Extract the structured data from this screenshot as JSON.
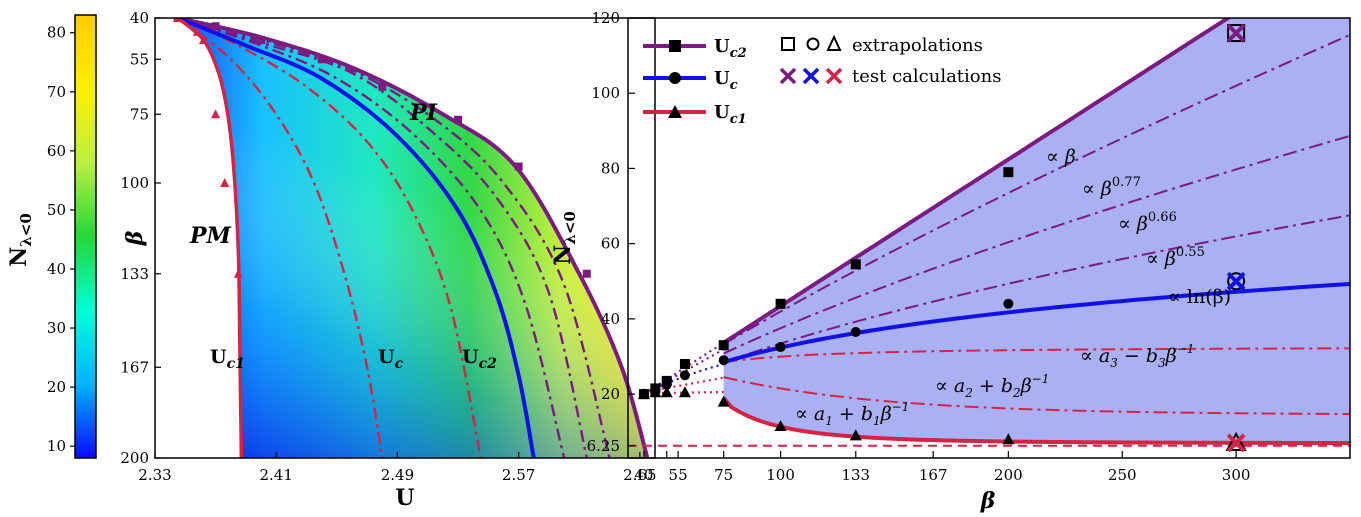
{
  "colorbar": {
    "label": "N",
    "label_sub": "λ<0",
    "ticks": [
      "80",
      "70",
      "60",
      "50",
      "40",
      "30",
      "20",
      "10"
    ],
    "tick_values": [
      80,
      70,
      60,
      50,
      40,
      30,
      20,
      10
    ],
    "range": [
      8,
      83
    ],
    "colors": [
      "#0a0aff",
      "#00b4ff",
      "#00ffd8",
      "#22d838",
      "#bbf040",
      "#fff000",
      "#ffcc00"
    ]
  },
  "chart_data": [
    {
      "type": "heatmap",
      "xlabel": "U",
      "ylabel": "β",
      "xlim": [
        2.33,
        2.66
      ],
      "ylim": [
        40,
        200
      ],
      "x_ticks": [
        "2.33",
        "2.41",
        "2.49",
        "2.57",
        "2.65"
      ],
      "x_tick_values": [
        2.33,
        2.41,
        2.49,
        2.57,
        2.65
      ],
      "y_ticks": [
        "40",
        "55",
        "75",
        "100",
        "133",
        "167",
        "200"
      ],
      "y_tick_values": [
        40,
        55,
        75,
        100,
        133,
        167,
        200
      ],
      "regions": {
        "pm": "PM",
        "pi": "PI"
      },
      "curve_labels": {
        "uc1": "U",
        "uc1_sub": "c1",
        "uc": "U",
        "uc_sub": "c",
        "uc2": "U",
        "uc2_sub": "c2"
      },
      "series": [
        {
          "name": "Uc2",
          "color": "#7b1b82",
          "points": [
            [
              2.345,
              40
            ],
            [
              2.4,
              47
            ],
            [
              2.46,
              58
            ],
            [
              2.52,
              75
            ],
            [
              2.568,
              94
            ],
            [
              2.61,
              133
            ],
            [
              2.638,
              167
            ],
            [
              2.655,
              200
            ]
          ]
        },
        {
          "name": "Uc",
          "color": "#1010e8",
          "points": [
            [
              2.345,
              40
            ],
            [
              2.39,
              50
            ],
            [
              2.44,
              62
            ],
            [
              2.49,
              83
            ],
            [
              2.53,
              110
            ],
            [
              2.555,
              140
            ],
            [
              2.57,
              170
            ],
            [
              2.58,
              200
            ]
          ]
        },
        {
          "name": "Uc1",
          "color": "#d42445",
          "points": [
            [
              2.345,
              40
            ],
            [
              2.362,
              48
            ],
            [
              2.372,
              60
            ],
            [
              2.378,
              75
            ],
            [
              2.382,
              95
            ],
            [
              2.385,
              125
            ],
            [
              2.386,
              160
            ],
            [
              2.387,
              200
            ]
          ]
        }
      ],
      "dashed_curves": [
        {
          "color": "#d42445",
          "points": [
            [
              2.345,
              40
            ],
            [
              2.38,
              55
            ],
            [
              2.41,
              75
            ],
            [
              2.435,
              100
            ],
            [
              2.455,
              133
            ],
            [
              2.47,
              167
            ],
            [
              2.48,
              200
            ]
          ]
        },
        {
          "color": "#d42445",
          "points": [
            [
              2.345,
              40
            ],
            [
              2.385,
              50
            ],
            [
              2.43,
              65
            ],
            [
              2.47,
              85
            ],
            [
              2.5,
              110
            ],
            [
              2.525,
              145
            ],
            [
              2.545,
              200
            ]
          ]
        },
        {
          "color": "#7b1b82",
          "points": [
            [
              2.345,
              40
            ],
            [
              2.4,
              50
            ],
            [
              2.45,
              62
            ],
            [
              2.5,
              82
            ],
            [
              2.545,
              110
            ],
            [
              2.575,
              145
            ],
            [
              2.6,
              200
            ]
          ]
        },
        {
          "color": "#7b1b82",
          "points": [
            [
              2.345,
              40
            ],
            [
              2.4,
              49
            ],
            [
              2.46,
              60
            ],
            [
              2.51,
              80
            ],
            [
              2.555,
              105
            ],
            [
              2.59,
              140
            ],
            [
              2.615,
              200
            ]
          ]
        },
        {
          "color": "#7b1b82",
          "points": [
            [
              2.345,
              40
            ],
            [
              2.4,
              48
            ],
            [
              2.46,
              59
            ],
            [
              2.515,
              77
            ],
            [
              2.56,
              100
            ],
            [
              2.6,
              137
            ],
            [
              2.63,
              200
            ]
          ]
        }
      ],
      "markers": {
        "Uc2": [
          [
            2.345,
            40
          ],
          [
            2.37,
            43
          ],
          [
            2.4,
            48
          ],
          [
            2.44,
            55
          ],
          [
            2.48,
            65
          ],
          [
            2.53,
            77
          ],
          [
            2.57,
            94
          ],
          [
            2.615,
            133
          ]
        ],
        "Uc1": [
          [
            2.345,
            40
          ],
          [
            2.358,
            45
          ],
          [
            2.362,
            48
          ],
          [
            2.37,
            75
          ],
          [
            2.376,
            100
          ],
          [
            2.385,
            133
          ]
        ]
      }
    },
    {
      "type": "line",
      "xlabel": "β",
      "ylabel": "N",
      "ylabel_sub": "λ<0",
      "xlim": [
        33,
        350
      ],
      "ylim": [
        3,
        120
      ],
      "x_ticks": [
        "40",
        "55",
        "75",
        "100",
        "133",
        "167",
        "200",
        "250",
        "300"
      ],
      "x_tick_values": [
        40,
        55,
        75,
        100,
        133,
        167,
        200,
        250,
        300
      ],
      "x_ticks_extra": [
        {
          "label": "50",
          "value": 50
        }
      ],
      "y_ticks": [
        "6.25",
        "20",
        "40",
        "60",
        "80",
        "100",
        "120"
      ],
      "y_tick_values": [
        6.25,
        20,
        40,
        60,
        80,
        100,
        120
      ],
      "hline": 6.25,
      "legend": [
        {
          "label": "U",
          "sub": "c2",
          "marker": "square",
          "color": "#7b1b82"
        },
        {
          "label": "U",
          "sub": "c",
          "marker": "circle",
          "color": "#1010e8"
        },
        {
          "label": "U",
          "sub": "c1",
          "marker": "triangle",
          "color": "#d42445"
        }
      ],
      "legend_extra": [
        {
          "label": "extrapolations",
          "markers": [
            "square",
            "circle",
            "triangle"
          ]
        },
        {
          "label": "test calculations",
          "crosses": [
            "#7b1b82",
            "#1010e8",
            "#d42445"
          ]
        }
      ],
      "series": [
        {
          "name": "Uc2",
          "color": "#7b1b82",
          "marker": "square",
          "points": [
            [
              40,
              20
            ],
            [
              45,
              21.5
            ],
            [
              50,
              23.5
            ],
            [
              58,
              28
            ],
            [
              75,
              33
            ],
            [
              100,
              44
            ],
            [
              133,
              54.5
            ],
            [
              200,
              79
            ]
          ],
          "fit": {
            "form": "linear",
            "slope": 0.39,
            "x0": 40,
            "y0": 20
          }
        },
        {
          "name": "Uc",
          "color": "#1010e8",
          "marker": "circle",
          "points": [
            [
              40,
              20
            ],
            [
              45,
              21
            ],
            [
              50,
              22.5
            ],
            [
              58,
              25
            ],
            [
              75,
              29
            ],
            [
              100,
              32.5
            ],
            [
              133,
              36.5
            ],
            [
              200,
              44
            ]
          ],
          "fit": {
            "form": "log"
          }
        },
        {
          "name": "Uc1",
          "color": "#d42445",
          "marker": "triangle",
          "points": [
            [
              40,
              20
            ],
            [
              45,
              20.5
            ],
            [
              50,
              20.5
            ],
            [
              58,
              20.5
            ],
            [
              75,
              18
            ],
            [
              100,
              11.5
            ],
            [
              133,
              9
            ],
            [
              200,
              8
            ]
          ],
          "fit": {
            "form": "inverse",
            "a": 7.0,
            "b": 1000
          }
        }
      ],
      "dashdot_fits": [
        {
          "label": "∝ β^0.77",
          "color": "#7b1b82",
          "exp": 0.77
        },
        {
          "label": "∝ β^0.66",
          "color": "#7b1b82",
          "exp": 0.66
        },
        {
          "label": "∝ β^0.55",
          "color": "#7b1b82",
          "exp": 0.55
        },
        {
          "label": "∝ a3 − b3β^−1",
          "color": "#d42445",
          "form": "a3"
        },
        {
          "label": "∝ a2 + b2β^−1",
          "color": "#d42445",
          "form": "a2"
        }
      ],
      "extrapolations": [
        {
          "x": 300,
          "y": 116,
          "marker": "square",
          "cross": "#7b1b82"
        },
        {
          "x": 300,
          "y": 50,
          "marker": "circle",
          "cross": "#1010e8"
        },
        {
          "x": 300,
          "y": 7,
          "marker": "triangle",
          "cross": "#d42445"
        }
      ],
      "annotations": {
        "beta": "∝ β",
        "b077": "∝ β",
        "b077_sup": "0.77",
        "b066": "∝ β",
        "b066_sup": "0.66",
        "b055": "∝ β",
        "b055_sup": "0.55",
        "lnb": "∝ ln(β)",
        "a3": "∝ a",
        "a3_rest": " − b",
        "a3_tail": "β",
        "a3_sup": "−1",
        "a3_sub1": "3",
        "a3_sub2": "3",
        "a2": "∝ a",
        "a2_rest": " + b",
        "a2_tail": "β",
        "a2_sup": "−1",
        "a2_sub1": "2",
        "a2_sub2": "2",
        "a1": "∝ a",
        "a1_rest": " + b",
        "a1_tail": "β",
        "a1_sup": "−1",
        "a1_sub1": "1",
        "a1_sub2": "1"
      }
    }
  ]
}
